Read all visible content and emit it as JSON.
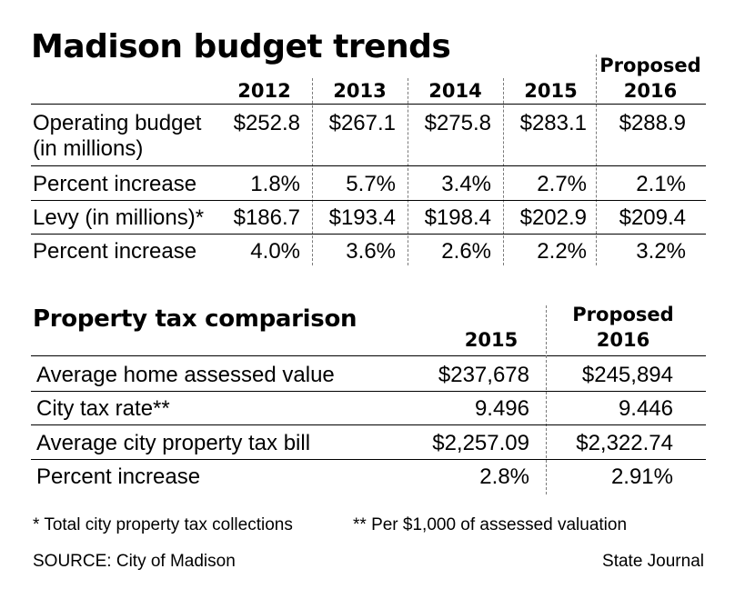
{
  "budget": {
    "title": "Madison budget trends",
    "columns": [
      "2012",
      "2013",
      "2014",
      "2015"
    ],
    "proposed_label": "Proposed",
    "proposed_year": "2016",
    "rows": [
      {
        "label": "Operating budget",
        "label2": "(in millions)",
        "values": [
          "$252.8",
          "$267.1",
          "$275.8",
          "$283.1",
          "$288.9"
        ]
      },
      {
        "label": "Percent increase",
        "values": [
          "1.8%",
          "5.7%",
          "3.4%",
          "2.7%",
          "2.1%"
        ]
      },
      {
        "label": "Levy (in millions)*",
        "values": [
          "$186.7",
          "$193.4",
          "$198.4",
          "$202.9",
          "$209.4"
        ]
      },
      {
        "label": "Percent increase",
        "values": [
          "4.0%",
          "3.6%",
          "2.6%",
          "2.2%",
          "3.2%"
        ]
      }
    ]
  },
  "tax": {
    "title": "Property tax comparison",
    "col_2015": "2015",
    "proposed_label": "Proposed",
    "proposed_year": "2016",
    "rows": [
      {
        "label": "Average home assessed value",
        "values": [
          "$237,678",
          "$245,894"
        ]
      },
      {
        "label": "City tax rate**",
        "values": [
          "9.496",
          "9.446"
        ]
      },
      {
        "label": "Average city property tax bill",
        "values": [
          "$2,257.09",
          "$2,322.74"
        ]
      },
      {
        "label": "Percent increase",
        "values": [
          "2.8%",
          "2.91%"
        ]
      }
    ]
  },
  "footnotes": {
    "note1": "* Total city property tax collections",
    "note2": "** Per $1,000 of assessed valuation",
    "source": "SOURCE: City of Madison",
    "credit": "State Journal"
  }
}
